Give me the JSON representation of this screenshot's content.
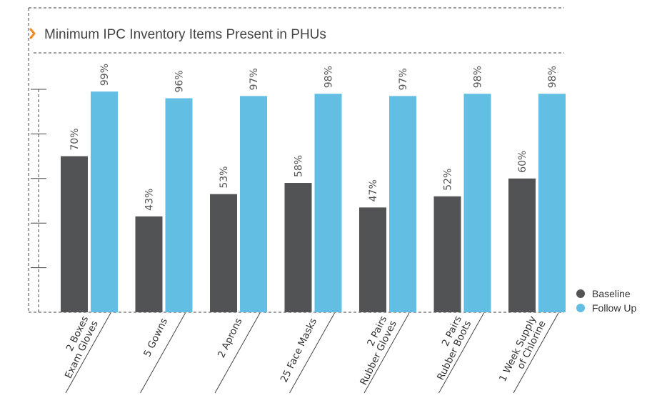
{
  "colors": {
    "baseline": "#525355",
    "follow_up": "#62bfe3",
    "title_chevron": "#f08a1d",
    "dashes": "#444444"
  },
  "chart_data": {
    "type": "bar",
    "title": "Minimum IPC Inventory Items Present in PHUs",
    "categories": [
      [
        "2 Boxes",
        "Exam Gloves"
      ],
      [
        "5 Gowns"
      ],
      [
        "2 Aprons"
      ],
      [
        "25 Face Masks"
      ],
      [
        "2 Pairs",
        "Rubber Gloves"
      ],
      [
        "2 Pairs",
        "Rubber Boots"
      ],
      [
        "1 Week Supply",
        "of Chlorine"
      ]
    ],
    "series": [
      {
        "name": "Baseline",
        "values": [
          70,
          43,
          53,
          58,
          47,
          52,
          60
        ],
        "labels": [
          "70%",
          "43%",
          "53%",
          "58%",
          "47%",
          "52%",
          "60%"
        ]
      },
      {
        "name": "Follow Up",
        "values": [
          99,
          96,
          97,
          98,
          97,
          98,
          98
        ],
        "labels": [
          "99%",
          "96%",
          "97%",
          "98%",
          "97%",
          "98%",
          "98%"
        ]
      }
    ],
    "ylim": [
      0,
      100
    ],
    "grid": false,
    "legend": "bottom-right"
  }
}
